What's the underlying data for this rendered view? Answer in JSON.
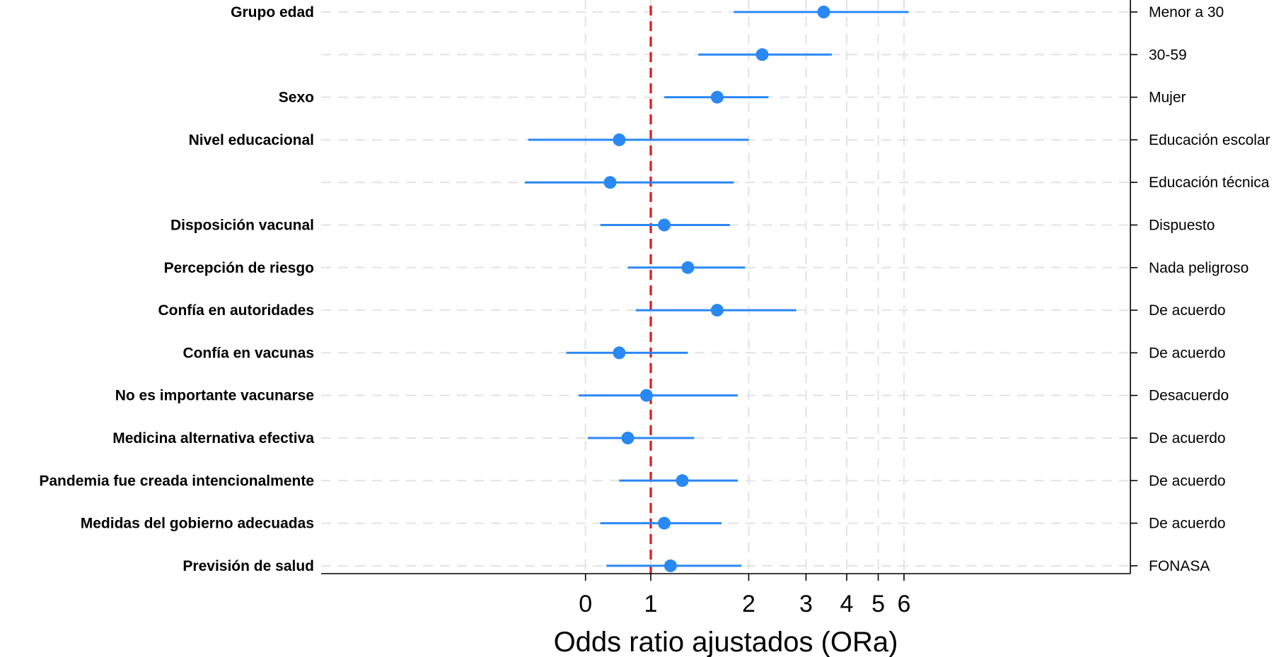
{
  "chart_data": {
    "type": "scatter",
    "subtype": "forest-plot",
    "title": "",
    "xlabel": "Odds ratio ajustados (ORa)",
    "ylabel": "",
    "x_scale": "log",
    "xlim": [
      0.3,
      7
    ],
    "x_ticks": [
      {
        "value": 0.63,
        "label": "0"
      },
      {
        "value": 1,
        "label": "1"
      },
      {
        "value": 2,
        "label": "2"
      },
      {
        "value": 3,
        "label": "3"
      },
      {
        "value": 4,
        "label": "4"
      },
      {
        "value": 5,
        "label": "5"
      },
      {
        "value": 6,
        "label": "6"
      }
    ],
    "reference_line": {
      "x": 1,
      "color": "#e0191b",
      "style": "dashed"
    },
    "grid": true,
    "colors": {
      "series": "#2a88f4",
      "reference": "#e0191b",
      "grid": "#e3e3e3",
      "axis": "#000000"
    },
    "rows": [
      {
        "group": "Grupo edad",
        "category": "Menor a 30",
        "ora": 3.4,
        "ci_low": 1.8,
        "ci_high": 6.2
      },
      {
        "group": "",
        "category": "30-59",
        "ora": 2.2,
        "ci_low": 1.4,
        "ci_high": 3.6
      },
      {
        "group": "Sexo",
        "category": "Mujer",
        "ora": 1.6,
        "ci_low": 1.1,
        "ci_high": 2.3
      },
      {
        "group": "Nivel educacional",
        "category": "Educación escolar",
        "ora": 0.8,
        "ci_low": 0.42,
        "ci_high": 2.0
      },
      {
        "group": "",
        "category": "Educación técnica",
        "ora": 0.75,
        "ci_low": 0.41,
        "ci_high": 1.8
      },
      {
        "group": "Disposición vacunal",
        "category": "Dispuesto",
        "ora": 1.1,
        "ci_low": 0.7,
        "ci_high": 1.75
      },
      {
        "group": "Percepción de riesgo",
        "category": "Nada peligroso",
        "ora": 1.3,
        "ci_low": 0.85,
        "ci_high": 1.95
      },
      {
        "group": "Confía en autoridades",
        "category": "De acuerdo",
        "ora": 1.6,
        "ci_low": 0.9,
        "ci_high": 2.8
      },
      {
        "group": "Confía en vacunas",
        "category": "De acuerdo",
        "ora": 0.8,
        "ci_low": 0.55,
        "ci_high": 1.3
      },
      {
        "group": "No es importante vacunarse",
        "category": "Desacuerdo",
        "ora": 0.97,
        "ci_low": 0.6,
        "ci_high": 1.85
      },
      {
        "group": "Medicina alternativa efectiva",
        "category": "De acuerdo",
        "ora": 0.85,
        "ci_low": 0.64,
        "ci_high": 1.36
      },
      {
        "group": "Pandemia fue creada intencionalmente",
        "category": "De acuerdo",
        "ora": 1.25,
        "ci_low": 0.8,
        "ci_high": 1.85
      },
      {
        "group": "Medidas del gobierno adecuadas",
        "category": "De acuerdo",
        "ora": 1.1,
        "ci_low": 0.7,
        "ci_high": 1.65
      },
      {
        "group": "Previsión de salud",
        "category": "FONASA",
        "ora": 1.15,
        "ci_low": 0.73,
        "ci_high": 1.9
      }
    ]
  }
}
